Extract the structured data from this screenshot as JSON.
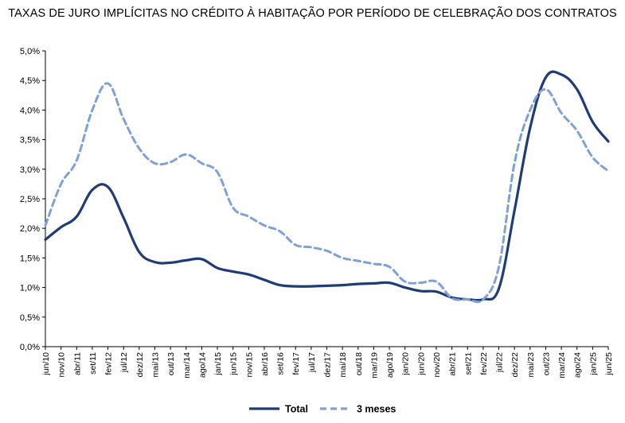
{
  "chart_data": {
    "type": "line",
    "title": "TAXAS DE JURO IMPLÍCITAS NO CRÉDITO À HABITAÇÃO POR PERÍODO DE CELEBRAÇÃO DOS CONTRATOS",
    "xlabel": "",
    "ylabel": "",
    "ylim": [
      0,
      5
    ],
    "yticks": [
      "0,0%",
      "0,5%",
      "1,0%",
      "1,5%",
      "2,0%",
      "2,5%",
      "3,0%",
      "3,5%",
      "4,0%",
      "4,5%",
      "5,0%"
    ],
    "xticks": [
      "jun/10",
      "nov/10",
      "abr/11",
      "set/11",
      "fev/12",
      "jul/12",
      "dez/12",
      "mai/13",
      "out/13",
      "mar/14",
      "ago/14",
      "jan/15",
      "jun/15",
      "nov/15",
      "abr/16",
      "set/16",
      "fev/17",
      "jul/17",
      "dez/17",
      "mai/18",
      "out/18",
      "mar/19",
      "ago/19",
      "jan/20",
      "jun/20",
      "nov/20",
      "abr/21",
      "set/21",
      "fev/22",
      "jul/22",
      "dez/22",
      "mai/23",
      "out/23",
      "mar/24",
      "ago/24",
      "jan/25",
      "jun/25"
    ],
    "legend_position": "bottom",
    "grid": false,
    "series": [
      {
        "name": "Total",
        "color": "#1f3c78",
        "style": "solid",
        "x": [
          "jun/10",
          "nov/10",
          "abr/11",
          "set/11",
          "fev/12",
          "jul/12",
          "dez/12",
          "mai/13",
          "out/13",
          "mar/14",
          "ago/14",
          "jan/15",
          "jun/15",
          "nov/15",
          "abr/16",
          "set/16",
          "fev/17",
          "jul/17",
          "dez/17",
          "mai/18",
          "out/18",
          "mar/19",
          "ago/19",
          "jan/20",
          "jun/20",
          "nov/20",
          "abr/21",
          "set/21",
          "fev/22",
          "jul/22",
          "dez/22",
          "mai/23",
          "out/23",
          "mar/24",
          "ago/24",
          "jan/25",
          "jun/25"
        ],
        "values": [
          1.81,
          2.02,
          2.2,
          2.65,
          2.7,
          2.18,
          1.6,
          1.43,
          1.42,
          1.46,
          1.48,
          1.33,
          1.27,
          1.22,
          1.13,
          1.04,
          1.02,
          1.02,
          1.03,
          1.04,
          1.06,
          1.07,
          1.08,
          1.0,
          0.94,
          0.93,
          0.83,
          0.8,
          0.8,
          0.98,
          2.3,
          3.7,
          4.55,
          4.6,
          4.35,
          3.8,
          3.47
        ]
      },
      {
        "name": "3 meses",
        "color": "#7ea1d8",
        "style": "dashed",
        "x": [
          "jun/10",
          "nov/10",
          "abr/11",
          "set/11",
          "fev/12",
          "jul/12",
          "dez/12",
          "mai/13",
          "out/13",
          "mar/14",
          "ago/14",
          "jan/15",
          "jun/15",
          "nov/15",
          "abr/16",
          "set/16",
          "fev/17",
          "jul/17",
          "dez/17",
          "mai/18",
          "out/18",
          "mar/19",
          "ago/19",
          "jan/20",
          "jun/20",
          "nov/20",
          "abr/21",
          "set/21",
          "fev/22",
          "jul/22",
          "dez/22",
          "mai/23",
          "out/23",
          "mar/24",
          "ago/24",
          "jan/25",
          "jun/25"
        ],
        "values": [
          2.05,
          2.75,
          3.15,
          4.0,
          4.45,
          3.85,
          3.35,
          3.1,
          3.12,
          3.25,
          3.1,
          2.95,
          2.35,
          2.2,
          2.05,
          1.95,
          1.72,
          1.68,
          1.62,
          1.5,
          1.45,
          1.4,
          1.35,
          1.1,
          1.08,
          1.1,
          0.82,
          0.8,
          0.8,
          1.35,
          3.1,
          4.0,
          4.35,
          3.95,
          3.65,
          3.2,
          2.97
        ]
      }
    ]
  }
}
